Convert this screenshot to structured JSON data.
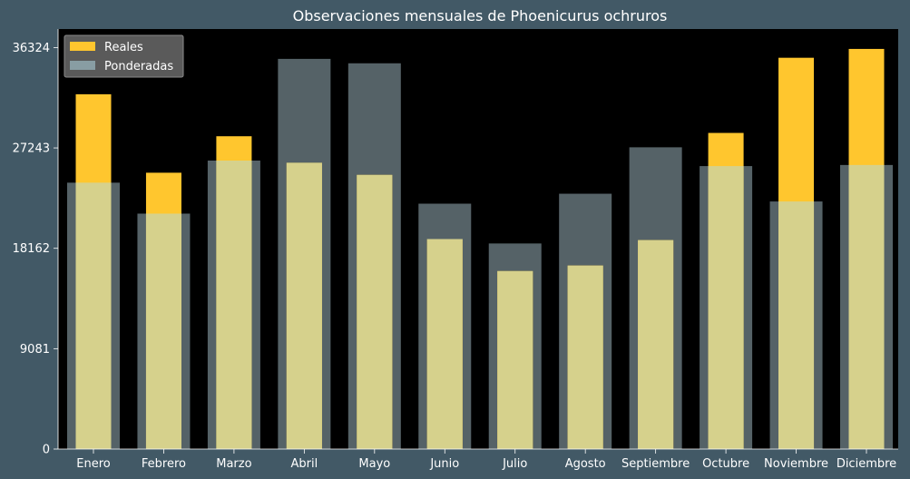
{
  "chart_data": {
    "type": "bar",
    "title": "Observaciones mensuales de Phoenicurus ochruros",
    "categories": [
      "Enero",
      "Febrero",
      "Marzo",
      "Abril",
      "Mayo",
      "Junio",
      "Julio",
      "Agosto",
      "Septiembre",
      "Octubre",
      "Noviembre",
      "Diciembre"
    ],
    "series": [
      {
        "name": "Ponderadas",
        "values": [
          24100,
          21300,
          26100,
          35300,
          34900,
          22200,
          18600,
          23100,
          27300,
          25600,
          22400,
          25700
        ],
        "color": "#8da4ab",
        "opacity": 0.6
      },
      {
        "name": "Reales",
        "values": [
          32100,
          25000,
          28300,
          25900,
          24800,
          19000,
          16100,
          16600,
          18900,
          28600,
          35400,
          36200
        ],
        "color": "#ffc62e",
        "opacity": 1
      }
    ],
    "overlap_color": "#d6d18c",
    "yticks": [
      0,
      9081,
      18162,
      27243,
      36324
    ],
    "ylim": [
      0,
      38000
    ],
    "xlabel": "",
    "ylabel": "",
    "legend": {
      "position": "top-left",
      "entries": [
        "Reales",
        "Ponderadas"
      ]
    },
    "grid": false,
    "plot_background": "#000000",
    "figure_background": "#425966"
  }
}
